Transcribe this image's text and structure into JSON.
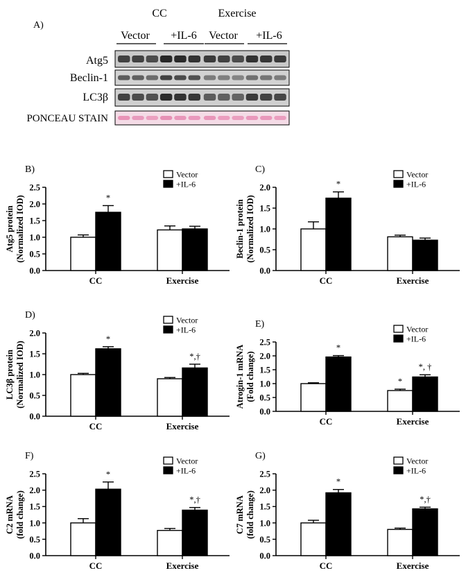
{
  "blot": {
    "panel_label": "A)",
    "groups": [
      "CC",
      "Exercise"
    ],
    "subgroups": [
      "Vector",
      "+IL-6",
      "Vector",
      "+IL-6"
    ],
    "rows": [
      "Atg5",
      "Beclin-1",
      "LC3β",
      "PONCEAU STAIN"
    ]
  },
  "chart_data": [
    {
      "panel": "B)",
      "type": "bar",
      "ylabel": [
        "Atg5 protein",
        "(Normalized IOD)"
      ],
      "categories": [
        "CC",
        "Exercise"
      ],
      "ylim": [
        0,
        2.5
      ],
      "yticks": [
        0.0,
        0.5,
        1.0,
        1.5,
        2.0,
        2.5
      ],
      "legend": [
        "Vector",
        "+IL-6"
      ],
      "series": [
        {
          "name": "Vector",
          "values": [
            1.0,
            1.22
          ],
          "errors": [
            0.07,
            0.12
          ]
        },
        {
          "name": "+IL-6",
          "values": [
            1.75,
            1.25
          ],
          "errors": [
            0.2,
            0.08
          ]
        }
      ],
      "annotations": [
        {
          "category": 0,
          "series": 1,
          "text": "*"
        }
      ]
    },
    {
      "panel": "C)",
      "type": "bar",
      "ylabel": [
        "Beclin-1 protein",
        "(Normalized IOD)"
      ],
      "categories": [
        "CC",
        "Exercise"
      ],
      "ylim": [
        0,
        2.0
      ],
      "yticks": [
        0.0,
        0.5,
        1.0,
        1.5,
        2.0
      ],
      "legend": [
        "Vector",
        "+IL-6"
      ],
      "series": [
        {
          "name": "Vector",
          "values": [
            1.0,
            0.81
          ],
          "errors": [
            0.17,
            0.04
          ]
        },
        {
          "name": "+IL-6",
          "values": [
            1.74,
            0.73
          ],
          "errors": [
            0.15,
            0.05
          ]
        }
      ],
      "annotations": [
        {
          "category": 0,
          "series": 1,
          "text": "*"
        }
      ]
    },
    {
      "panel": "D)",
      "type": "bar",
      "ylabel": [
        "LC3β  protein",
        "(Normalized IOD)"
      ],
      "categories": [
        "CC",
        "Exercise"
      ],
      "ylim": [
        0,
        2.0
      ],
      "yticks": [
        0.0,
        0.5,
        1.0,
        1.5,
        2.0
      ],
      "legend": [
        "Vector",
        "+IL-6"
      ],
      "series": [
        {
          "name": "Vector",
          "values": [
            1.0,
            0.9
          ],
          "errors": [
            0.03,
            0.03
          ]
        },
        {
          "name": "+IL-6",
          "values": [
            1.62,
            1.16
          ],
          "errors": [
            0.05,
            0.09
          ]
        }
      ],
      "annotations": [
        {
          "category": 0,
          "series": 1,
          "text": "*"
        },
        {
          "category": 1,
          "series": 1,
          "text": "*,†"
        }
      ]
    },
    {
      "panel": "E)",
      "type": "bar",
      "ylabel": [
        "Atrogin-1 mRNA",
        "(Fold change)"
      ],
      "categories": [
        "CC",
        "Exercise"
      ],
      "ylim": [
        0,
        2.5
      ],
      "yticks": [
        0.0,
        0.5,
        1.0,
        1.5,
        2.0,
        2.5
      ],
      "legend": [
        "Vector",
        "+IL-6"
      ],
      "series": [
        {
          "name": "Vector",
          "values": [
            1.0,
            0.75
          ],
          "errors": [
            0.03,
            0.05
          ]
        },
        {
          "name": "+IL-6",
          "values": [
            1.96,
            1.24
          ],
          "errors": [
            0.05,
            0.08
          ]
        }
      ],
      "annotations": [
        {
          "category": 0,
          "series": 1,
          "text": "*"
        },
        {
          "category": 1,
          "series": 0,
          "text": "*"
        },
        {
          "category": 1,
          "series": 1,
          "text": "*, †"
        }
      ]
    },
    {
      "panel": "F)",
      "type": "bar",
      "ylabel": [
        "C2 mRNA",
        "(fold change)"
      ],
      "categories": [
        "CC",
        "Exercise"
      ],
      "ylim": [
        0,
        2.5
      ],
      "yticks": [
        0.0,
        0.5,
        1.0,
        1.5,
        2.0,
        2.5
      ],
      "legend": [
        "Vector",
        "+IL-6"
      ],
      "series": [
        {
          "name": "Vector",
          "values": [
            1.0,
            0.77
          ],
          "errors": [
            0.13,
            0.06
          ]
        },
        {
          "name": "+IL-6",
          "values": [
            2.03,
            1.39
          ],
          "errors": [
            0.22,
            0.08
          ]
        }
      ],
      "annotations": [
        {
          "category": 0,
          "series": 1,
          "text": "*"
        },
        {
          "category": 1,
          "series": 1,
          "text": "*,†"
        }
      ]
    },
    {
      "panel": "G)",
      "type": "bar",
      "ylabel": [
        "C7 mRNA",
        "(fold change)"
      ],
      "categories": [
        "CC",
        "Exercise"
      ],
      "ylim": [
        0,
        2.5
      ],
      "yticks": [
        0.0,
        0.5,
        1.0,
        1.5,
        2.0,
        2.5
      ],
      "legend": [
        "Vector",
        "+IL-6"
      ],
      "series": [
        {
          "name": "Vector",
          "values": [
            1.0,
            0.8
          ],
          "errors": [
            0.08,
            0.04
          ]
        },
        {
          "name": "+IL-6",
          "values": [
            1.92,
            1.43
          ],
          "errors": [
            0.1,
            0.05
          ]
        }
      ],
      "annotations": [
        {
          "category": 0,
          "series": 1,
          "text": "*"
        },
        {
          "category": 1,
          "series": 1,
          "text": "*,†"
        }
      ]
    }
  ]
}
